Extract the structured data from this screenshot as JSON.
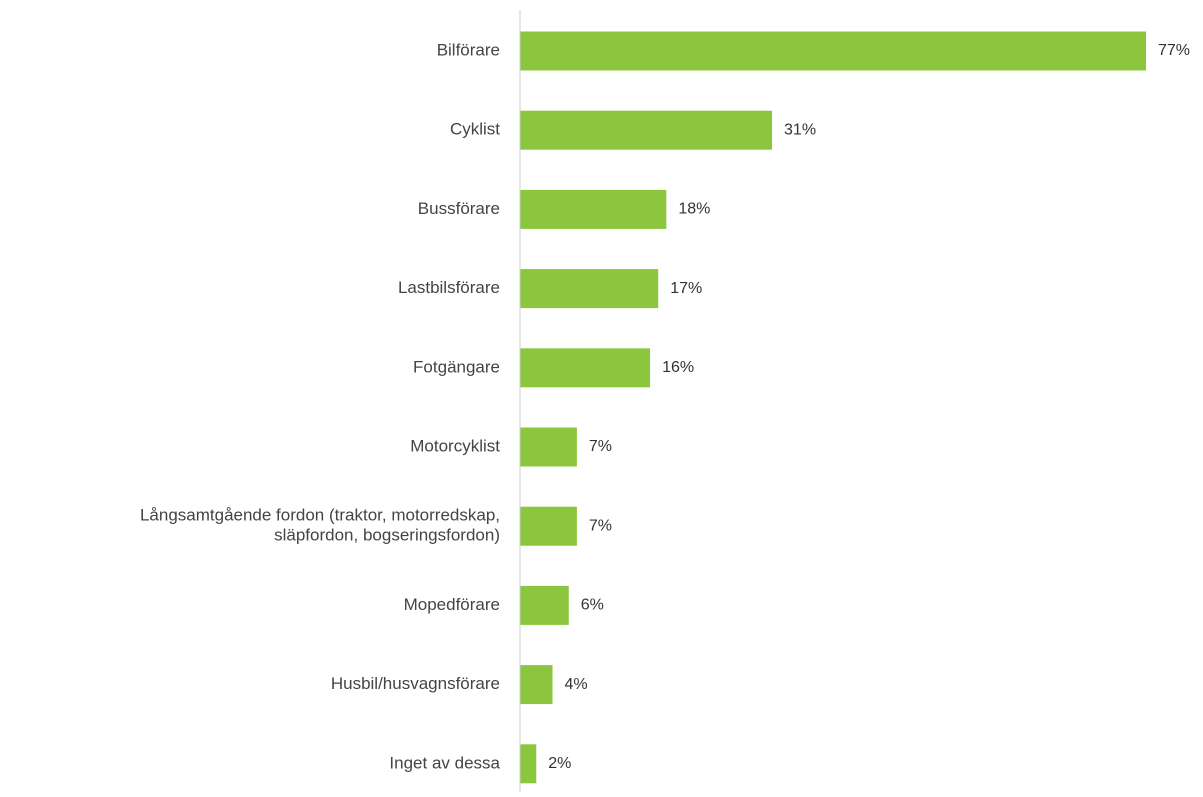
{
  "chart_data": {
    "type": "bar",
    "orientation": "horizontal",
    "categories": [
      [
        "Bilförare"
      ],
      [
        "Cyklist"
      ],
      [
        "Bussförare"
      ],
      [
        "Lastbilsförare"
      ],
      [
        "Fotgängare"
      ],
      [
        "Motorcyklist"
      ],
      [
        "Långsamtgående fordon (traktor, motorredskap,",
        "släpfordon, bogseringsfordon)"
      ],
      [
        "Mopedförare"
      ],
      [
        "Husbil/husvagnsförare"
      ],
      [
        "Inget av dessa"
      ]
    ],
    "values": [
      77,
      31,
      18,
      17,
      16,
      7,
      7,
      6,
      4,
      2
    ],
    "value_labels": [
      "77%",
      "31%",
      "18%",
      "17%",
      "16%",
      "7%",
      "7%",
      "6%",
      "4%",
      "2%"
    ],
    "bar_color": "#8cc63f",
    "axis_color": "#cccccc",
    "xlim": [
      0,
      77
    ],
    "grid": false,
    "legend": "none"
  }
}
